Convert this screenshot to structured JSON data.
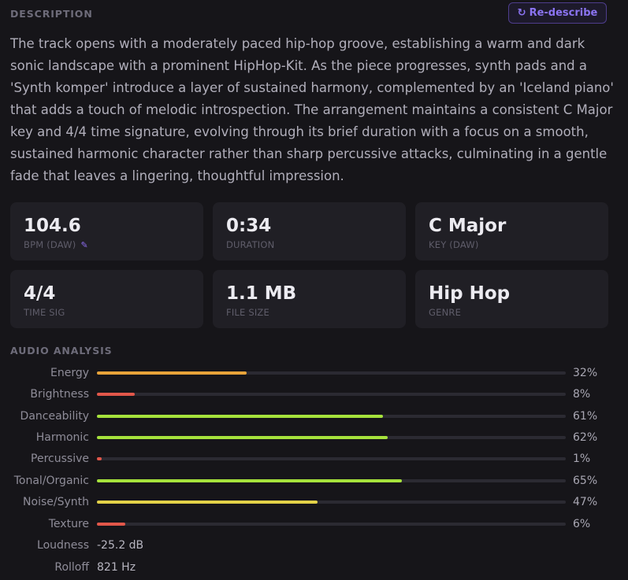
{
  "description": {
    "heading": "DESCRIPTION",
    "redescribe_label": "Re-describe",
    "redescribe_icon": "↻",
    "text": "The track opens with a moderately paced hip-hop groove, establishing a warm and dark sonic landscape with a prominent HipHop-Kit. As the piece progresses, synth pads and a 'Synth komper' introduce a layer of sustained harmony, complemented by an 'Iceland piano' that adds a touch of melodic introspection. The arrangement maintains a consistent C Major key and 4/4 time signature, evolving through its brief duration with a focus on a smooth, sustained harmonic character rather than sharp percussive attacks, culminating in a gentle fade that leaves a lingering, thoughtful impression."
  },
  "stats": [
    {
      "value": "104.6",
      "label": "BPM (DAW)",
      "icon": "pencil-icon"
    },
    {
      "value": "0:34",
      "label": "DURATION"
    },
    {
      "value": "C Major",
      "label": "KEY (DAW)"
    },
    {
      "value": "4/4",
      "label": "TIME SIG"
    },
    {
      "value": "1.1 MB",
      "label": "FILE SIZE"
    },
    {
      "value": "Hip Hop",
      "label": "GENRE"
    }
  ],
  "analysis": {
    "heading": "AUDIO ANALYSIS",
    "metrics": [
      {
        "name": "Energy",
        "percent": 32,
        "display": "32%",
        "color": "#e8a33a"
      },
      {
        "name": "Brightness",
        "percent": 8,
        "display": "8%",
        "color": "#e2574a"
      },
      {
        "name": "Danceability",
        "percent": 61,
        "display": "61%",
        "color": "#a6e23c"
      },
      {
        "name": "Harmonic",
        "percent": 62,
        "display": "62%",
        "color": "#a6e23c"
      },
      {
        "name": "Percussive",
        "percent": 1,
        "display": "1%",
        "color": "#e2574a"
      },
      {
        "name": "Tonal/Organic",
        "percent": 65,
        "display": "65%",
        "color": "#a6e23c"
      },
      {
        "name": "Noise/Synth",
        "percent": 47,
        "display": "47%",
        "color": "#e3d148"
      },
      {
        "name": "Texture",
        "percent": 6,
        "display": "6%",
        "color": "#e2574a"
      }
    ],
    "readouts": [
      {
        "name": "Loudness",
        "value": "-25.2 dB"
      },
      {
        "name": "Rolloff",
        "value": "821 Hz"
      }
    ]
  }
}
